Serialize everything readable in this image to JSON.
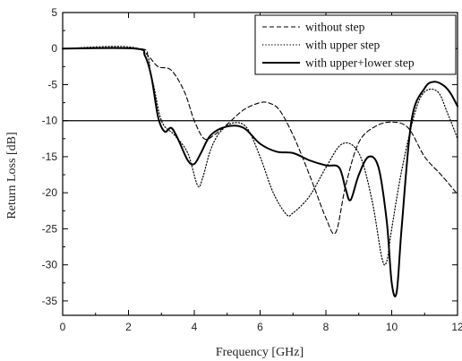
{
  "chart_data": {
    "type": "line",
    "title": "",
    "xlabel": "Frequency [GHz]",
    "ylabel": "Return Loss [dB]",
    "xlim": [
      0,
      12
    ],
    "ylim": [
      -37,
      5
    ],
    "xticks": [
      0,
      2,
      4,
      6,
      8,
      10,
      12
    ],
    "yticks": [
      5,
      0,
      -5,
      -10,
      -15,
      -20,
      -25,
      -30,
      -35
    ],
    "xtick_labels": [
      "0",
      "2",
      "4",
      "6",
      "8",
      "10",
      "12"
    ],
    "ytick_labels": [
      "5",
      "0",
      "-5",
      "-10",
      "-15",
      "-20",
      "-25",
      "-30",
      "-35"
    ],
    "grid": false,
    "legend_position": "top-right",
    "reference_line": {
      "y": -10
    },
    "series": [
      {
        "name": "without step",
        "style": "dashed",
        "color": "#000000",
        "x": [
          0,
          2.3,
          2.6,
          2.9,
          3.3,
          3.7,
          4.0,
          4.3,
          4.6,
          5.0,
          5.5,
          6.0,
          6.3,
          6.6,
          7.0,
          7.5,
          8.0,
          8.3,
          8.6,
          9.0,
          9.5,
          10.0,
          10.5,
          11.0,
          11.5,
          12.0
        ],
        "y": [
          0,
          0,
          -1.0,
          -2.5,
          -3.0,
          -6.0,
          -10.0,
          -12.5,
          -12.0,
          -10.5,
          -8.5,
          -7.5,
          -7.6,
          -8.6,
          -12.0,
          -17.5,
          -23.5,
          -25.5,
          -19.0,
          -13.0,
          -10.8,
          -10.2,
          -11.0,
          -15.0,
          -17.5,
          -20.2
        ]
      },
      {
        "name": "with upper step",
        "style": "dotted",
        "color": "#000000",
        "x": [
          0,
          2.3,
          2.7,
          3.0,
          3.4,
          3.8,
          4.1,
          4.25,
          4.5,
          4.8,
          5.2,
          5.6,
          6.0,
          6.4,
          6.8,
          7.0,
          7.5,
          8.0,
          8.5,
          9.0,
          9.4,
          9.7,
          9.85,
          10.0,
          10.3,
          10.7,
          11.0,
          11.4,
          11.7,
          12.0
        ],
        "y": [
          0,
          0,
          -4.0,
          -10.0,
          -12.0,
          -14.5,
          -19.0,
          -18.0,
          -14.0,
          -11.5,
          -10.3,
          -11.0,
          -15.0,
          -20.0,
          -23.0,
          -22.8,
          -20.5,
          -16.5,
          -13.2,
          -14.5,
          -21.0,
          -29.0,
          -29.5,
          -25.0,
          -17.0,
          -9.0,
          -6.0,
          -6.0,
          -9.0,
          -12.5
        ]
      },
      {
        "name": "with upper+lower step",
        "style": "solid",
        "color": "#000000",
        "x": [
          0,
          2.2,
          2.5,
          2.7,
          2.9,
          3.1,
          3.3,
          3.5,
          3.8,
          4.0,
          4.2,
          4.5,
          5.0,
          5.5,
          6.0,
          6.5,
          7.0,
          7.5,
          8.0,
          8.4,
          8.6,
          8.75,
          9.0,
          9.3,
          9.6,
          9.85,
          10.0,
          10.15,
          10.3,
          10.6,
          11.0,
          11.3,
          11.6,
          11.8,
          12.0
        ],
        "y": [
          0,
          0,
          -1.0,
          -4.0,
          -9.5,
          -11.5,
          -11.0,
          -12.5,
          -15.5,
          -16.0,
          -14.5,
          -12.0,
          -10.8,
          -11.0,
          -13.2,
          -14.3,
          -14.5,
          -15.5,
          -16.2,
          -16.5,
          -19.5,
          -21.0,
          -17.5,
          -15.0,
          -16.5,
          -24.0,
          -32.5,
          -33.8,
          -25.0,
          -10.0,
          -5.5,
          -4.6,
          -5.2,
          -6.3,
          -8.0
        ]
      }
    ]
  }
}
